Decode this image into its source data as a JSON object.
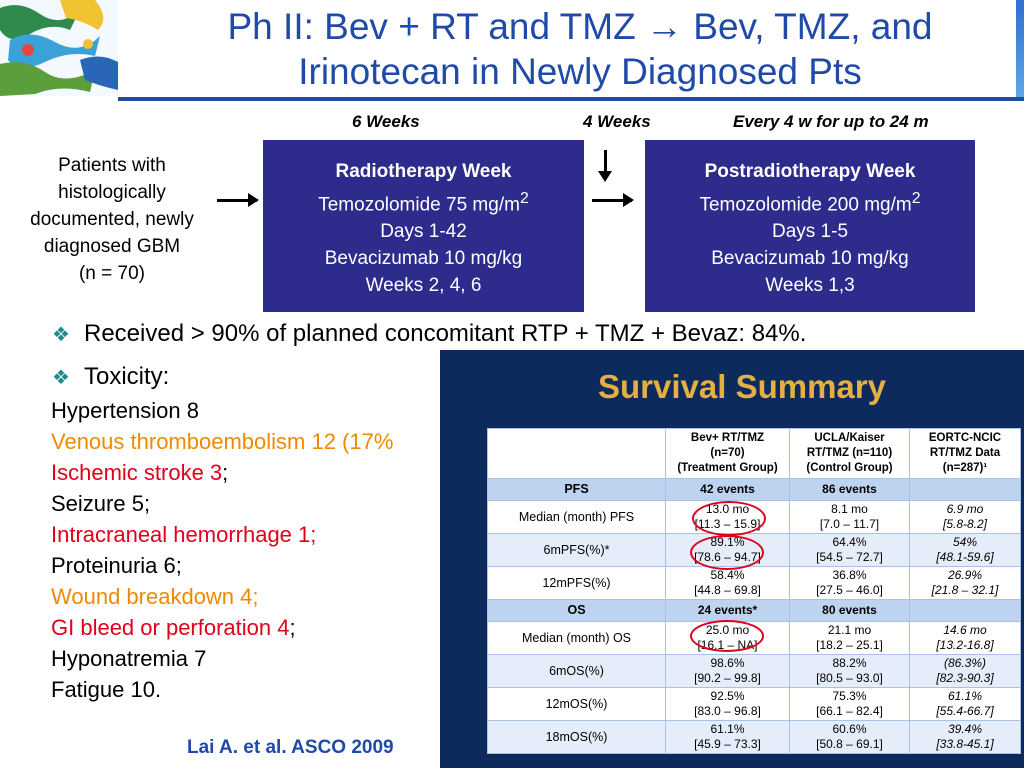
{
  "title": {
    "line1": "Ph II: Bev + RT and TMZ → Bev, TMZ, and",
    "line2": "Irinotecan in Newly Diagnosed Pts"
  },
  "schema": {
    "weeks": [
      "6 Weeks",
      "4 Weeks",
      "Every 4 w for  up to 24 m"
    ],
    "patients": [
      "Patients with",
      "histologically",
      "documented, newly",
      "diagnosed GBM",
      "(n = 70)"
    ],
    "radiotherapy": {
      "title": "Radiotherapy Week",
      "tmz": "Temozolomide 75 mg/m",
      "tmz_sup": "2",
      "days": "Days 1-42",
      "bev": "Bevacizumab 10 mg/kg",
      "weeks": "Weeks 2, 4, 6"
    },
    "postradiotherapy": {
      "title": "Postradiotherapy Week",
      "tmz": "Temozolomide 200 mg/m",
      "tmz_sup": "2",
      "days": "Days 1-5",
      "bev": "Bevacizumab 10 mg/kg",
      "weeks": "Weeks 1,3"
    }
  },
  "bullets": {
    "received": "Received > 90% of planned concomitant RTP + TMZ + Bevaz: 84%.",
    "toxicity": "Toxicity:"
  },
  "toxicity": [
    {
      "text": "Hypertension 8",
      "suffix": "",
      "color": "#000000"
    },
    {
      "text": "Venous thromboembolism 12 (17%",
      "suffix": "",
      "color": "#ef8a00"
    },
    {
      "text": "Ischemic stroke 3",
      "suffix": ";",
      "color": "#e0001b"
    },
    {
      "text": "Seizure 5;",
      "suffix": "",
      "color": "#000000"
    },
    {
      "text": "Intracraneal hemorrhage 1;",
      "suffix": "",
      "color": "#e0001b"
    },
    {
      "text": "Proteinuria 6;",
      "suffix": "",
      "color": "#000000"
    },
    {
      "text": "Wound  breakdown 4;",
      "suffix": "",
      "color": "#ef8a00"
    },
    {
      "text": "GI bleed or perforation 4",
      "suffix": ";",
      "color": "#e0001b"
    },
    {
      "text": "Hyponatremia 7",
      "suffix": "",
      "color": "#000000"
    },
    {
      "text": "Fatigue 10.",
      "suffix": "",
      "color": "#000000"
    }
  ],
  "citation": "Lai  A. et al. ASCO 2009",
  "survival": {
    "title": "Survival Summary",
    "headers": [
      "",
      "Bev+ RT/TMZ\n(n=70)\n(Treatment Group)",
      "UCLA/Kaiser\nRT/TMZ (n=110)\n(Control Group)",
      "EORTC-NCIC\nRT/TMZ Data\n(n=287)¹"
    ],
    "rows": [
      {
        "section": true,
        "cells": [
          "PFS",
          "42 events",
          "86 events",
          ""
        ]
      },
      {
        "cells": [
          "Median (month) PFS",
          "13.0 mo\n[11.3 – 15.9]",
          "8.1 mo\n[7.0 – 11.7]",
          "6.9 mo\n[5.8-8.2]"
        ]
      },
      {
        "alt": true,
        "cells": [
          "6mPFS(%)*",
          "89.1%\n[78.6 – 94.7]",
          "64.4%\n[54.5 – 72.7]",
          "54%\n[48.1-59.6]"
        ]
      },
      {
        "cells": [
          "12mPFS(%)",
          "58.4%\n[44.8 – 69.8]",
          "36.8%\n[27.5 – 46.0]",
          "26.9%\n[21.8 – 32.1]"
        ]
      },
      {
        "section": true,
        "cells": [
          "OS",
          "24 events*",
          "80 events",
          ""
        ]
      },
      {
        "cells": [
          "Median (month) OS",
          "25.0 mo\n[16.1 – NA]",
          "21.1 mo\n[18.2 – 25.1]",
          "14.6 mo\n[13.2-16.8]"
        ]
      },
      {
        "alt": true,
        "cells": [
          "6mOS(%)",
          "98.6%\n[90.2 – 99.8]",
          "88.2%\n[80.5 – 93.0]",
          "(86.3%)\n[82.3-90.3]"
        ]
      },
      {
        "cells": [
          "12mOS(%)",
          "92.5%\n[83.0 – 96.8]",
          "75.3%\n[66.1 – 82.4]",
          "61.1%\n[55.4-66.7]"
        ]
      },
      {
        "alt": true,
        "cells": [
          "18mOS(%)",
          "61.1%\n[45.9 – 73.3]",
          "60.6%\n[50.8 – 69.1]",
          "39.4%\n[33.8-45.1]"
        ]
      }
    ]
  },
  "colors": {
    "title_blue": "#1f4aa8",
    "box_fill": "#2d2b8c",
    "panel_bg": "#0d2a5c",
    "panel_title": "#e4b042",
    "circle": "#e0001b"
  }
}
